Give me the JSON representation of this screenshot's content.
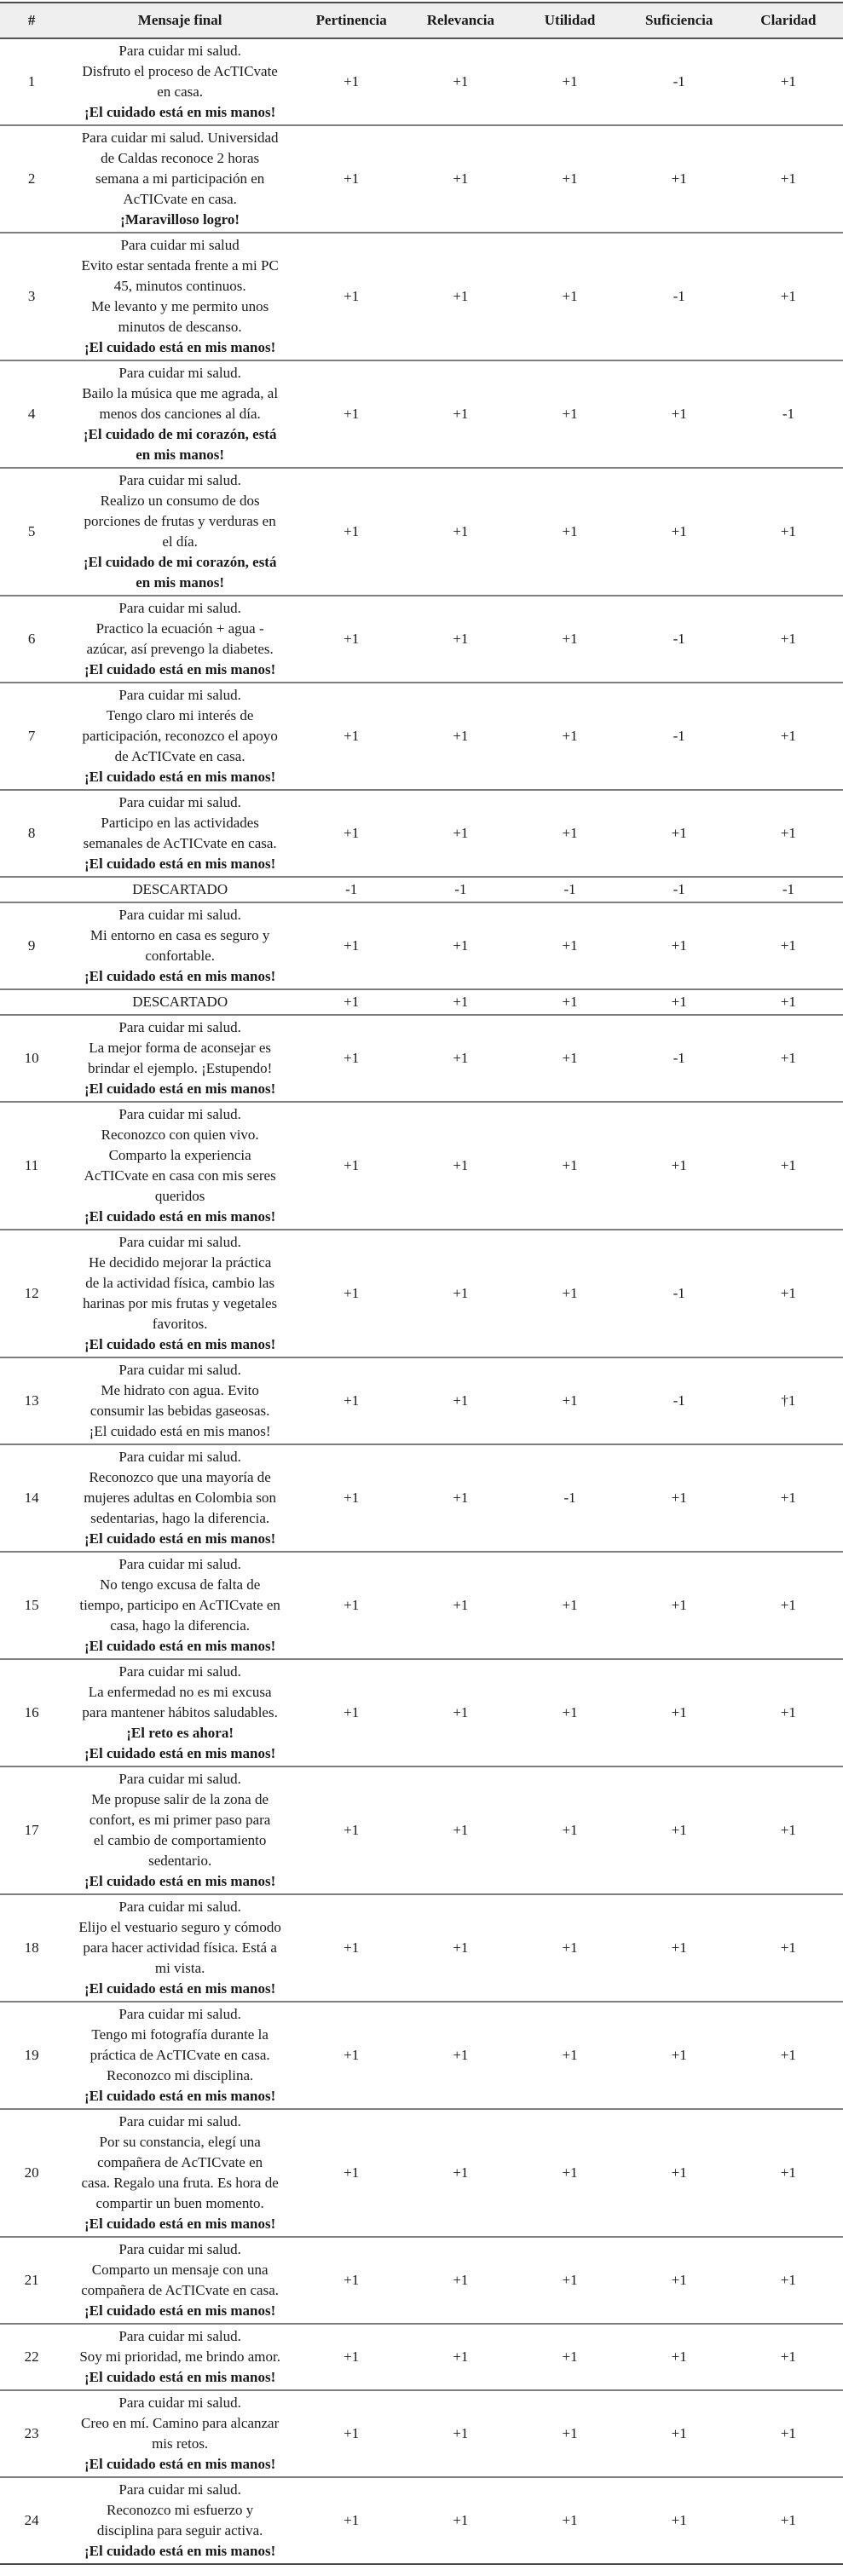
{
  "table": {
    "headers": [
      "#",
      "Mensaje final",
      "Pertinencia",
      "Relevancia",
      "Utilidad",
      "Suficiencia",
      "Claridad"
    ],
    "discarded_label": "DESCARTADO",
    "colors": {
      "header_bg": "#efefef",
      "rule_dark": "#4c4c4c",
      "rule_light": "#7e7e7e",
      "text": "#1a1a1a"
    },
    "rows": [
      {
        "num": "1",
        "lines": [
          "Para cuidar mi salud.",
          "Disfruto el proceso de AcTICvate",
          "en casa.",
          {
            "t": "¡El cuidado está en mis manos!",
            "b": true
          }
        ],
        "ratings": [
          "+1",
          "+1",
          "+1",
          "-1",
          "+1"
        ]
      },
      {
        "num": "2",
        "lines": [
          "Para cuidar mi salud. Universidad",
          "de Caldas reconoce 2 horas",
          "semana a mi participación en",
          "AcTICvate en casa.",
          {
            "t": "¡Maravilloso logro!",
            "b": true
          }
        ],
        "ratings": [
          "+1",
          "+1",
          "+1",
          "+1",
          "+1"
        ]
      },
      {
        "num": "3",
        "lines": [
          "Para cuidar mi salud",
          "Evito estar sentada frente a mi PC",
          "45, minutos continuos.",
          "Me levanto y me permito unos",
          "minutos de descanso.",
          {
            "t": "¡El cuidado está en mis manos!",
            "b": true
          }
        ],
        "ratings": [
          "+1",
          "+1",
          "+1",
          "-1",
          "+1"
        ]
      },
      {
        "num": "4",
        "lines": [
          "Para cuidar mi salud.",
          "Bailo la música que me agrada, al",
          "menos dos canciones al día.",
          {
            "t": "¡El cuidado de mi corazón, está",
            "b": true
          },
          {
            "t": "en mis manos!",
            "b": true
          }
        ],
        "ratings": [
          "+1",
          "+1",
          "+1",
          "+1",
          "-1"
        ]
      },
      {
        "num": "5",
        "lines": [
          "Para cuidar mi salud.",
          "Realizo un consumo de dos",
          "porciones de frutas y verduras en",
          "el día.",
          {
            "t": "¡El cuidado de mi corazón, está",
            "b": true
          },
          {
            "t": "en mis manos!",
            "b": true
          }
        ],
        "ratings": [
          "+1",
          "+1",
          "+1",
          "+1",
          "+1"
        ]
      },
      {
        "num": "6",
        "lines": [
          "Para cuidar mi salud.",
          "Practico la ecuación + agua -",
          "azúcar, así prevengo la diabetes.",
          {
            "t": "¡El cuidado está en mis manos!",
            "b": true
          }
        ],
        "ratings": [
          "+1",
          "+1",
          "+1",
          "-1",
          "+1"
        ]
      },
      {
        "num": "7",
        "lines": [
          "Para cuidar mi salud.",
          "Tengo claro mi interés de",
          "participación, reconozco el apoyo",
          "de AcTICvate en casa.",
          {
            "t": "¡El cuidado está en mis manos!",
            "b": true
          }
        ],
        "ratings": [
          "+1",
          "+1",
          "+1",
          "-1",
          "+1"
        ]
      },
      {
        "num": "8",
        "lines": [
          "Para cuidar mi salud.",
          "Participo en las actividades",
          "semanales de AcTICvate en casa.",
          {
            "t": "¡El cuidado está en mis manos!",
            "b": true
          }
        ],
        "ratings": [
          "+1",
          "+1",
          "+1",
          "+1",
          "+1"
        ]
      },
      {
        "num": "",
        "discarded": true,
        "lines": [
          "DESCARTADO"
        ],
        "ratings": [
          "-1",
          "-1",
          "-1",
          "-1",
          "-1"
        ]
      },
      {
        "num": "9",
        "lines": [
          "Para cuidar mi salud.",
          "Mi entorno en casa es seguro y",
          "confortable.",
          {
            "t": "¡El cuidado está en mis manos!",
            "b": true
          }
        ],
        "ratings": [
          "+1",
          "+1",
          "+1",
          "+1",
          "+1"
        ]
      },
      {
        "num": "",
        "discarded": true,
        "lines": [
          "DESCARTADO"
        ],
        "ratings": [
          "+1",
          "+1",
          "+1",
          "+1",
          "+1"
        ]
      },
      {
        "num": "10",
        "lines": [
          "Para cuidar mi salud.",
          "La mejor forma de aconsejar es",
          "brindar el ejemplo. ¡Estupendo!",
          {
            "t": "¡El cuidado está en mis manos!",
            "b": true
          }
        ],
        "ratings": [
          "+1",
          "+1",
          "+1",
          "-1",
          "+1"
        ]
      },
      {
        "num": "11",
        "lines": [
          "Para cuidar mi salud.",
          "Reconozco con quien vivo.",
          "Comparto la experiencia",
          "AcTICvate en casa con mis seres",
          "queridos",
          {
            "t": "¡El cuidado está en mis manos!",
            "b": true
          }
        ],
        "ratings": [
          "+1",
          "+1",
          "+1",
          "+1",
          "+1"
        ]
      },
      {
        "num": "12",
        "lines": [
          "Para cuidar mi salud.",
          "He decidido mejorar la práctica",
          "de la actividad física, cambio las",
          "harinas por mis frutas y vegetales",
          "favoritos.",
          {
            "t": "¡El cuidado está en mis manos!",
            "b": true
          }
        ],
        "ratings": [
          "+1",
          "+1",
          "+1",
          "-1",
          "+1"
        ]
      },
      {
        "num": "13",
        "lines": [
          "Para cuidar mi salud.",
          "Me hidrato con agua. Evito",
          "consumir las bebidas gaseosas.",
          "¡El cuidado está en mis manos!"
        ],
        "ratings": [
          "+1",
          "+1",
          "+1",
          "-1",
          "†1"
        ]
      },
      {
        "num": "14",
        "lines": [
          "Para cuidar mi salud.",
          "Reconozco que una mayoría de",
          "mujeres adultas en Colombia son",
          "sedentarias, hago la diferencia.",
          {
            "t": "¡El cuidado está en mis manos!",
            "b": true
          }
        ],
        "ratings": [
          "+1",
          "+1",
          "-1",
          "+1",
          "+1"
        ]
      },
      {
        "num": "15",
        "lines": [
          "Para cuidar mi salud.",
          "No tengo excusa de falta de",
          "tiempo, participo en AcTICvate en",
          "casa, hago la diferencia.",
          {
            "t": "¡El cuidado está en mis manos!",
            "b": true
          }
        ],
        "ratings": [
          "+1",
          "+1",
          "+1",
          "+1",
          "+1"
        ]
      },
      {
        "num": "16",
        "lines": [
          "Para cuidar mi salud.",
          "La enfermedad no es mi excusa",
          "para mantener hábitos saludables.",
          {
            "t": "¡El reto es ahora!",
            "b": true
          },
          {
            "t": "¡El cuidado está en mis manos!",
            "b": true
          }
        ],
        "ratings": [
          "+1",
          "+1",
          "+1",
          "+1",
          "+1"
        ]
      },
      {
        "num": "17",
        "lines": [
          "Para cuidar mi salud.",
          "Me propuse salir de la zona de",
          "confort, es mi primer paso para",
          "el cambio de comportamiento",
          "sedentario.",
          {
            "t": "¡El cuidado está en mis manos!",
            "b": true
          }
        ],
        "ratings": [
          "+1",
          "+1",
          "+1",
          "+1",
          "+1"
        ]
      },
      {
        "num": "18",
        "lines": [
          "Para cuidar mi salud.",
          "Elijo el vestuario seguro y cómodo",
          "para hacer actividad física. Está a",
          "mi vista.",
          {
            "t": "¡El cuidado está en mis manos!",
            "b": true
          }
        ],
        "ratings": [
          "+1",
          "+1",
          "+1",
          "+1",
          "+1"
        ]
      },
      {
        "num": "19",
        "lines": [
          "Para cuidar mi salud.",
          "Tengo mi fotografía durante la",
          "práctica de AcTICvate en casa.",
          "Reconozco mi disciplina.",
          {
            "t": "¡El cuidado está en mis manos!",
            "b": true
          }
        ],
        "ratings": [
          "+1",
          "+1",
          "+1",
          "+1",
          "+1"
        ]
      },
      {
        "num": "20",
        "lines": [
          "Para cuidar mi salud.",
          "Por su constancia, elegí una",
          "compañera de AcTICvate en",
          "casa. Regalo una fruta. Es hora de",
          "compartir un buen momento.",
          {
            "t": "¡El cuidado está en mis manos!",
            "b": true
          }
        ],
        "ratings": [
          "+1",
          "+1",
          "+1",
          "+1",
          "+1"
        ]
      },
      {
        "num": "21",
        "lines": [
          "Para cuidar mi salud.",
          "Comparto un mensaje con una",
          "compañera de AcTICvate en casa.",
          {
            "t": "¡El cuidado está en mis manos!",
            "b": true
          }
        ],
        "ratings": [
          "+1",
          "+1",
          "+1",
          "+1",
          "+1"
        ]
      },
      {
        "num": "22",
        "lines": [
          "Para cuidar mi salud.",
          "Soy mi prioridad, me brindo amor.",
          {
            "t": "¡El cuidado está en mis manos!",
            "b": true
          }
        ],
        "ratings": [
          "+1",
          "+1",
          "+1",
          "+1",
          "+1"
        ]
      },
      {
        "num": "23",
        "lines": [
          "Para cuidar mi salud.",
          "Creo en mí. Camino para alcanzar",
          "mis retos.",
          {
            "t": "¡El cuidado está en mis manos!",
            "b": true
          }
        ],
        "ratings": [
          "+1",
          "+1",
          "+1",
          "+1",
          "+1"
        ]
      },
      {
        "num": "24",
        "lines": [
          "Para cuidar mi salud.",
          "Reconozco mi esfuerzo y",
          "disciplina para seguir activa.",
          {
            "t": "¡El cuidado está en mis manos!",
            "b": true
          }
        ],
        "ratings": [
          "+1",
          "+1",
          "+1",
          "+1",
          "+1"
        ]
      }
    ]
  }
}
